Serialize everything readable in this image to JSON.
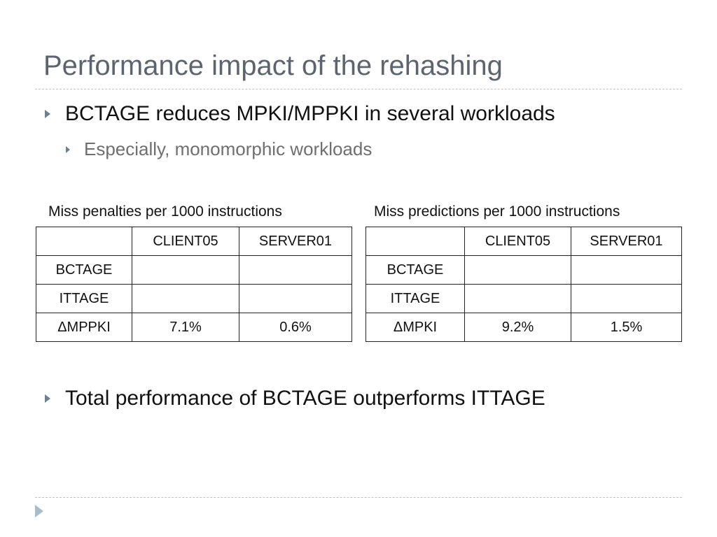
{
  "slide": {
    "title": "Performance impact of the rehashing",
    "bullets": [
      {
        "text": "BCTAGE reduces MPKI/MPPKI in several workloads"
      },
      {
        "text": "Especially, monomorphic workloads"
      },
      {
        "text": "Total performance of BCTAGE outperforms ITTAGE"
      }
    ]
  },
  "tables": [
    {
      "caption": "Miss penalties per 1000 instructions",
      "headers": [
        "",
        "CLIENT05",
        "SERVER01"
      ],
      "rows": [
        [
          "BCTAGE",
          "",
          ""
        ],
        [
          "ITTAGE",
          "",
          ""
        ],
        [
          "ΔMPPKI",
          "7.1%",
          "0.6%"
        ]
      ]
    },
    {
      "caption": "Miss predictions per 1000 instructions",
      "headers": [
        "",
        "CLIENT05",
        "SERVER01"
      ],
      "rows": [
        [
          "BCTAGE",
          "",
          ""
        ],
        [
          "ITTAGE",
          "",
          ""
        ],
        [
          "ΔMPKI",
          "9.2%",
          "1.5%"
        ]
      ]
    }
  ],
  "colors": {
    "title": "#5c6470",
    "bullet_arrow": "#6d8191",
    "sub_bullet_text": "#6f6f6f",
    "rule": "#b8c4cc"
  },
  "icons": {
    "bullet": "triangle-right-icon",
    "nav": "next-slide-icon"
  }
}
